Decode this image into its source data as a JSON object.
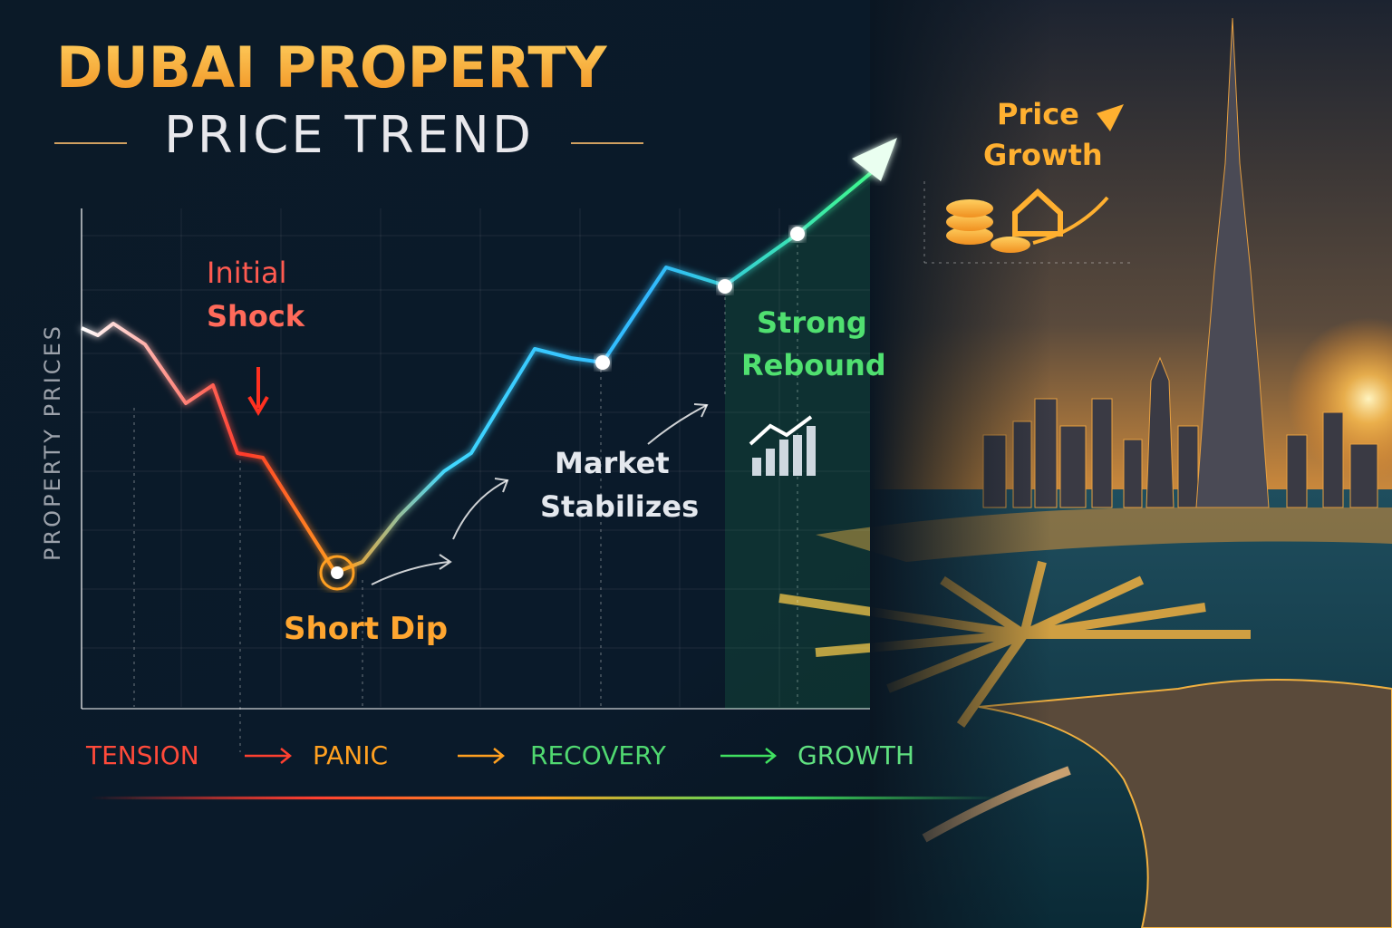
{
  "title": "DUBAI PROPERTY",
  "subtitle": "PRICE TREND",
  "axis_label": "PROPERTY PRICES",
  "annotations": [
    {
      "lines": [
        "Initial",
        "Shock"
      ]
    },
    {
      "lines": [
        "Short Dip"
      ]
    },
    {
      "lines": [
        "Market",
        "Stabilizes"
      ]
    },
    {
      "lines": [
        "Strong",
        "Rebound"
      ]
    },
    {
      "lines": [
        "Price",
        "Growth"
      ]
    }
  ],
  "phases": [
    "TENSION",
    "PANIC",
    "RECOVERY",
    "GROWTH"
  ]
}
